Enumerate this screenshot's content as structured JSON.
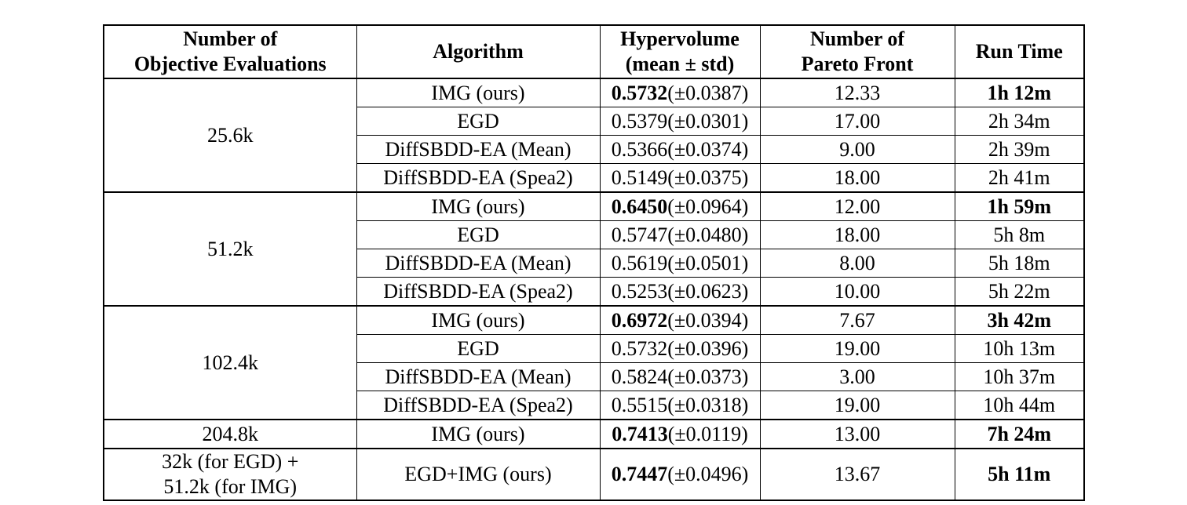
{
  "page": {
    "background": "#ffffff",
    "text_color": "#000000",
    "border_color": "#000000"
  },
  "table": {
    "headers": [
      {
        "id": "objective-evaluations",
        "lines": [
          "Number of",
          "Objective Evaluations"
        ]
      },
      {
        "id": "algorithm",
        "lines": [
          "Algorithm"
        ]
      },
      {
        "id": "hypervolume",
        "lines": [
          "Hypervolume",
          "(mean ± std)"
        ]
      },
      {
        "id": "pareto-front",
        "lines": [
          "Number of",
          "Pareto Front"
        ]
      },
      {
        "id": "run-time",
        "lines": [
          "Run Time"
        ]
      }
    ],
    "groups": [
      {
        "evaluations": [
          "25.6k"
        ],
        "rows": [
          {
            "algorithm": "IMG (ours)",
            "hv_mean": "0.5732",
            "hv_std": "(±0.0387)",
            "pareto_front": "12.33",
            "run_time": "1h 12m",
            "best": true
          },
          {
            "algorithm": "EGD",
            "hv_mean": "0.5379",
            "hv_std": "(±0.0301)",
            "pareto_front": "17.00",
            "run_time": "2h 34m",
            "best": false
          },
          {
            "algorithm": "DiffSBDD-EA (Mean)",
            "hv_mean": "0.5366",
            "hv_std": "(±0.0374)",
            "pareto_front": "9.00",
            "run_time": "2h 39m",
            "best": false
          },
          {
            "algorithm": "DiffSBDD-EA (Spea2)",
            "hv_mean": "0.5149",
            "hv_std": "(±0.0375)",
            "pareto_front": "18.00",
            "run_time": "2h 41m",
            "best": false
          }
        ]
      },
      {
        "evaluations": [
          "51.2k"
        ],
        "rows": [
          {
            "algorithm": "IMG (ours)",
            "hv_mean": "0.6450",
            "hv_std": "(±0.0964)",
            "pareto_front": "12.00",
            "run_time": "1h 59m",
            "best": true
          },
          {
            "algorithm": "EGD",
            "hv_mean": "0.5747",
            "hv_std": "(±0.0480)",
            "pareto_front": "18.00",
            "run_time": "5h 8m",
            "best": false
          },
          {
            "algorithm": "DiffSBDD-EA (Mean)",
            "hv_mean": "0.5619",
            "hv_std": "(±0.0501)",
            "pareto_front": "8.00",
            "run_time": "5h 18m",
            "best": false
          },
          {
            "algorithm": "DiffSBDD-EA (Spea2)",
            "hv_mean": "0.5253",
            "hv_std": "(±0.0623)",
            "pareto_front": "10.00",
            "run_time": "5h 22m",
            "best": false
          }
        ]
      },
      {
        "evaluations": [
          "102.4k"
        ],
        "rows": [
          {
            "algorithm": "IMG (ours)",
            "hv_mean": "0.6972",
            "hv_std": "(±0.0394)",
            "pareto_front": "7.67",
            "run_time": "3h 42m",
            "best": true
          },
          {
            "algorithm": "EGD",
            "hv_mean": "0.5732",
            "hv_std": "(±0.0396)",
            "pareto_front": "19.00",
            "run_time": "10h 13m",
            "best": false
          },
          {
            "algorithm": "DiffSBDD-EA (Mean)",
            "hv_mean": "0.5824",
            "hv_std": "(±0.0373)",
            "pareto_front": "3.00",
            "run_time": "10h 37m",
            "best": false
          },
          {
            "algorithm": "DiffSBDD-EA (Spea2)",
            "hv_mean": "0.5515",
            "hv_std": "(±0.0318)",
            "pareto_front": "19.00",
            "run_time": "10h 44m",
            "best": false
          }
        ]
      },
      {
        "evaluations": [
          "204.8k"
        ],
        "rows": [
          {
            "algorithm": "IMG (ours)",
            "hv_mean": "0.7413",
            "hv_std": "(±0.0119)",
            "pareto_front": "13.00",
            "run_time": "7h 24m",
            "best": true
          }
        ]
      },
      {
        "evaluations": [
          "32k (for EGD) +",
          "51.2k (for IMG)"
        ],
        "rows": [
          {
            "algorithm": "EGD+IMG (ours)",
            "hv_mean": "0.7447",
            "hv_std": "(±0.0496)",
            "pareto_front": "13.67",
            "run_time": "5h 11m",
            "best": true
          }
        ]
      }
    ]
  }
}
